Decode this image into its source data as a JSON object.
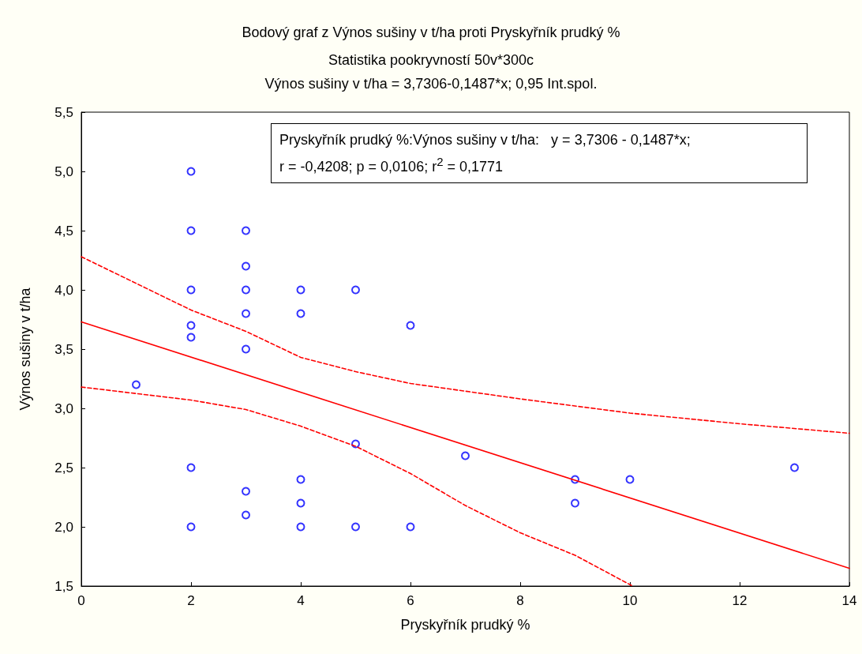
{
  "chart_data": {
    "type": "scatter",
    "title": "Bodový graf z Výnos sušiny v t/ha proti Pryskyřník prudký %",
    "subtitle": "Statistika pookryvností 50v*300c\nVýnos sušiny v t/ha = 3,7306-0,1487*x; 0,95 Int.spol.",
    "xlabel": "Pryskyřník prudký %",
    "ylabel": "Výnos sušiny v t/ha",
    "annotations": [
      "Pryskyřník prudký %:Výnos sušiny v t/ha:   y = 3,7306 - 0,1487*x;",
      "r = -0,4208; p = 0,0106; r$^{2}$ = 0,1771"
    ],
    "series": [
      {
        "color": "#0000ff",
        "marker": "circle",
        "x": [
          1,
          2,
          2,
          2,
          2,
          2,
          2,
          2,
          3,
          3,
          3,
          3,
          3,
          3,
          3,
          4,
          4,
          4,
          4,
          4,
          5,
          5,
          5,
          6,
          6,
          7,
          9,
          9,
          10,
          13
        ],
        "values": [
          3.2,
          5.0,
          4.5,
          4.0,
          3.7,
          3.6,
          2.5,
          2.0,
          4.5,
          4.2,
          4.0,
          3.8,
          3.5,
          2.3,
          2.1,
          4.0,
          3.8,
          2.4,
          2.2,
          2.0,
          4.0,
          2.7,
          2.0,
          3.7,
          2.0,
          2.6,
          2.4,
          2.2,
          2.4,
          2.5
        ]
      },
      {
        "type": "line",
        "color": "#ff0000",
        "marker": "none",
        "line_style": "solid",
        "x": [
          0,
          14
        ],
        "values": [
          3.73,
          1.65
        ]
      },
      {
        "type": "line",
        "color": "#ff0000",
        "marker": "none",
        "line_style": "dashed",
        "x": [
          0,
          2,
          3,
          4,
          5,
          6,
          8,
          10,
          12,
          14
        ],
        "values": [
          4.28,
          3.83,
          3.65,
          3.43,
          3.31,
          3.21,
          3.08,
          2.96,
          2.87,
          2.79
        ]
      },
      {
        "type": "line",
        "color": "#ff0000",
        "marker": "none",
        "line_style": "dashed",
        "x": [
          0,
          2,
          3,
          4,
          5,
          6,
          7,
          8,
          9,
          10.05
        ],
        "values": [
          3.18,
          3.07,
          2.99,
          2.85,
          2.68,
          2.45,
          2.18,
          1.95,
          1.76,
          1.5
        ]
      }
    ],
    "xlim": [
      0,
      14
    ],
    "xticks": [
      0,
      2,
      4,
      6,
      8,
      10,
      12,
      14
    ],
    "ylim": [
      1.5,
      5.5
    ],
    "yticks": [
      {
        "value": 1.5,
        "label": "1,5"
      },
      {
        "value": 2.0,
        "label": "2,0"
      },
      {
        "value": 2.5,
        "label": "2,5"
      },
      {
        "value": 3.0,
        "label": "3,0"
      },
      {
        "value": 3.5,
        "label": "3,5"
      },
      {
        "value": 4.0,
        "label": "4,0"
      },
      {
        "value": 4.5,
        "label": "4,5"
      },
      {
        "value": 5.0,
        "label": "5,0"
      },
      {
        "value": 5.5,
        "label": "5,5"
      }
    ],
    "grid": false
  }
}
